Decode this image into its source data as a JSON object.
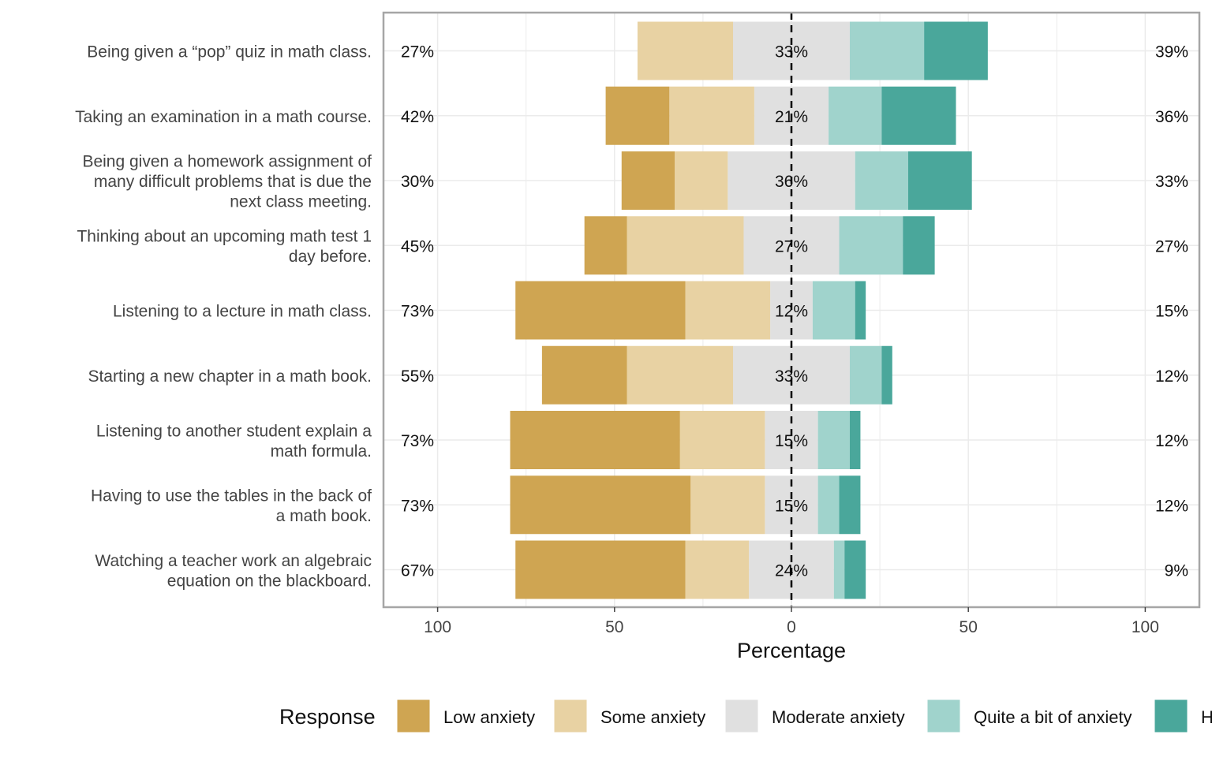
{
  "chart_data": {
    "type": "bar",
    "orientation": "horizontal",
    "layout": "diverging-stacked",
    "xlabel": "Percentage",
    "xlim": [
      -100,
      100
    ],
    "x_ticks": [
      {
        "value": -100,
        "label": "100"
      },
      {
        "value": -50,
        "label": "50"
      },
      {
        "value": 0,
        "label": "0"
      },
      {
        "value": 50,
        "label": "50"
      },
      {
        "value": 100,
        "label": "100"
      }
    ],
    "grid": true,
    "legend": {
      "title": "Response",
      "position": "bottom",
      "entries": [
        {
          "label": "Low anxiety",
          "color": "#CFA552"
        },
        {
          "label": "Some anxiety",
          "color": "#E8D2A3"
        },
        {
          "label": "Moderate anxiety",
          "color": "#E0E0E0"
        },
        {
          "label": "Quite a bit of anxiety",
          "color": "#A0D3CC"
        },
        {
          "label": "H",
          "color": "#4AA79B"
        }
      ]
    },
    "items": [
      {
        "label": "Being given a “pop” quiz in math class.",
        "values": [
          0,
          27,
          33,
          21,
          18
        ],
        "left_pct": "27%",
        "center_pct": "33%",
        "right_pct": "39%"
      },
      {
        "label": "Taking an examination in a math course.",
        "values": [
          18,
          24,
          21,
          15,
          21
        ],
        "left_pct": "42%",
        "center_pct": "21%",
        "right_pct": "36%"
      },
      {
        "label": "Being given a homework assignment of many difficult problems that is due the next class meeting.",
        "values": [
          15,
          15,
          36,
          15,
          18
        ],
        "left_pct": "30%",
        "center_pct": "36%",
        "right_pct": "33%"
      },
      {
        "label": "Thinking about an upcoming math test 1 day before.",
        "values": [
          12,
          33,
          27,
          18,
          9
        ],
        "left_pct": "45%",
        "center_pct": "27%",
        "right_pct": "27%"
      },
      {
        "label": "Listening to a lecture in math class.",
        "values": [
          48,
          24,
          12,
          12,
          3
        ],
        "left_pct": "73%",
        "center_pct": "12%",
        "right_pct": "15%"
      },
      {
        "label": "Starting a new chapter in a math book.",
        "values": [
          24,
          30,
          33,
          9,
          3
        ],
        "left_pct": "55%",
        "center_pct": "33%",
        "right_pct": "12%"
      },
      {
        "label": "Listening to another student explain a math formula.",
        "values": [
          48,
          24,
          15,
          9,
          3
        ],
        "left_pct": "73%",
        "center_pct": "15%",
        "right_pct": "12%"
      },
      {
        "label": "Having to use the tables in the back of a math book.",
        "values": [
          51,
          21,
          15,
          6,
          6
        ],
        "left_pct": "73%",
        "center_pct": "15%",
        "right_pct": "12%"
      },
      {
        "label": "Watching a teacher work an algebraic equation on the blackboard.",
        "values": [
          48,
          18,
          24,
          3,
          6
        ],
        "left_pct": "67%",
        "center_pct": "24%",
        "right_pct": "9%"
      }
    ]
  }
}
